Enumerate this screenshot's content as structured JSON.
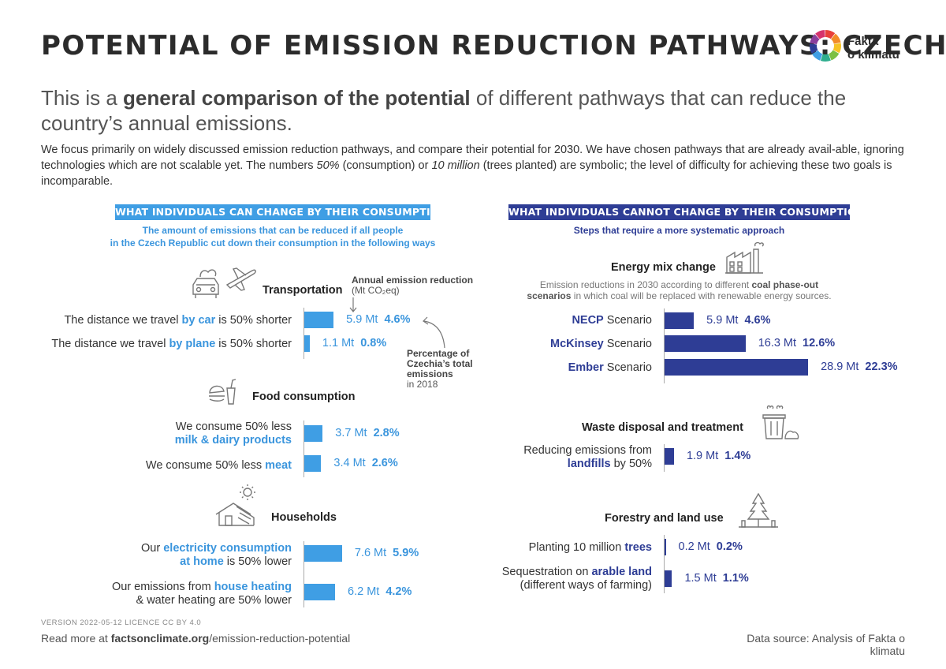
{
  "header": {
    "title": "POTENTIAL OF EMISSION REDUCTION PATHWAYS: CZECHIA",
    "logo_line1": "Fakta",
    "logo_line2": "o klimatu",
    "logo_colors": [
      "#e8403a",
      "#f28c28",
      "#f6c324",
      "#7cc043",
      "#2fae8f",
      "#3f9ee4",
      "#2e3d95",
      "#8a3f9c",
      "#d6336c"
    ],
    "subtitle_pre": "This is a ",
    "subtitle_bold": "general comparison of the potential",
    "subtitle_post": " of different pathways that can reduce the country’s annual emissions.",
    "intro_1": "We focus primarily on widely discussed emission reduction pathways, and compare their potential for 2030. We have chosen pathways that are already avail-able, ignoring technologies which are not scalable yet. The numbers ",
    "intro_em1": "50%",
    "intro_2": " (consumption) or ",
    "intro_em2": "10 million",
    "intro_3": " (trees planted) are symbolic; the level of difficulty for achieving these two goals is incomparable."
  },
  "colors": {
    "consumption": "#3f9ee4",
    "systemic": "#2e3d95"
  },
  "left": {
    "band": "WHAT INDIVIDUALS CAN CHANGE BY THEIR CONSUMPTION",
    "subtitle_1": "The amount of emissions that can be reduced if all people",
    "subtitle_2": "in the Czech Republic cut down their consumption in the following ways",
    "note_annual_1": "Annual emission reduction",
    "note_annual_2": "(Mt CO₂eq)",
    "note_pct_1": "Percentage of",
    "note_pct_2": "Czechia’s total",
    "note_pct_3": "emissions",
    "note_pct_4": "in 2018",
    "sections": {
      "transport": "Transportation",
      "food": "Food consumption",
      "households": "Households"
    },
    "rows": [
      {
        "pre": "The distance we travel ",
        "hl": "by car",
        "post": " is 50% shorter",
        "mt": "5.9 Mt",
        "pct": "4.6%"
      },
      {
        "pre": "The distance we travel ",
        "hl": "by plane",
        "post": " is 50% shorter",
        "mt": "1.1 Mt",
        "pct": "0.8%"
      },
      {
        "pre": "We consume 50% less",
        "hl": "milk & dairy products",
        "post": "",
        "mt": "3.7 Mt",
        "pct": "2.8%"
      },
      {
        "pre": "We consume 50% less ",
        "hl": "meat",
        "post": "",
        "mt": "3.4 Mt",
        "pct": "2.6%"
      },
      {
        "pre": "Our ",
        "hl": "electricity consumption",
        "hl2": "at home",
        "post": " is 50% lower",
        "mt": "7.6 Mt",
        "pct": "5.9%"
      },
      {
        "pre": "Our emissions from ",
        "hl": "house heating",
        "post": "& water heating are 50% lower",
        "mt": "6.2 Mt",
        "pct": "4.2%"
      }
    ]
  },
  "right": {
    "band": "WHAT INDIVIDUALS CANNOT CHANGE BY THEIR CONSUMPTION",
    "subtitle": "Steps that require a more systematic approach",
    "sections": {
      "energy": "Energy mix change",
      "waste": "Waste disposal and treatment",
      "forestry": "Forestry and land use"
    },
    "energy_note_1": "Emission reductions in 2030 according to different ",
    "energy_note_bold_1": "coal phase-out",
    "energy_note_bold_2": "scenarios",
    "energy_note_2": " in which coal will be replaced with renewable energy sources.",
    "rows": [
      {
        "hl": "NECP",
        "post": " Scenario",
        "mt": "5.9 Mt",
        "pct": "4.6%"
      },
      {
        "hl": "McKinsey",
        "post": " Scenario",
        "mt": "16.3 Mt",
        "pct": "12.6%"
      },
      {
        "hl": "Ember",
        "post": " Scenario",
        "mt": "28.9 Mt",
        "pct": "22.3%"
      },
      {
        "pre": "Reducing emissions from",
        "hl": "landfills",
        "post": " by 50%",
        "mt": "1.9 Mt",
        "pct": "1.4%"
      },
      {
        "pre": "Planting 10 million ",
        "hl": "trees",
        "post": "",
        "mt": "0.2 Mt",
        "pct": "0.2%"
      },
      {
        "pre": "Sequestration on ",
        "hl": "arable land",
        "post": "(different ways of farming)",
        "mt": "1.5 Mt",
        "pct": "1.1%"
      }
    ]
  },
  "chart_data": [
    {
      "type": "bar",
      "title": "WHAT INDIVIDUALS CAN CHANGE BY THEIR CONSUMPTION",
      "categories": [
        "by car",
        "by plane",
        "milk & dairy products",
        "meat",
        "electricity consumption at home",
        "house heating & water heating"
      ],
      "series": [
        {
          "name": "Annual emission reduction (Mt CO₂eq)",
          "values": [
            5.9,
            1.1,
            3.7,
            3.4,
            7.6,
            6.2
          ]
        },
        {
          "name": "Percentage of Czechia’s total emissions in 2018",
          "values": [
            4.6,
            0.8,
            2.8,
            2.6,
            5.9,
            4.2
          ]
        }
      ]
    },
    {
      "type": "bar",
      "title": "WHAT INDIVIDUALS CANNOT CHANGE BY THEIR CONSUMPTION",
      "categories": [
        "NECP Scenario",
        "McKinsey Scenario",
        "Ember Scenario",
        "landfills",
        "trees",
        "arable land"
      ],
      "series": [
        {
          "name": "Annual emission reduction (Mt CO₂eq)",
          "values": [
            5.9,
            16.3,
            28.9,
            1.9,
            0.2,
            1.5
          ]
        },
        {
          "name": "Percentage of Czechia’s total emissions in 2018",
          "values": [
            4.6,
            12.6,
            22.3,
            1.4,
            0.2,
            1.1
          ]
        }
      ]
    }
  ],
  "footer": {
    "version": "VERSION 2022-05-12   LICENCE CC BY 4.0",
    "read_more_pre": "Read more at ",
    "read_more_bold": "factsonclimate.org",
    "read_more_post": "/emission-reduction-potential",
    "source": "Data source: Analysis of Fakta o klimatu"
  }
}
